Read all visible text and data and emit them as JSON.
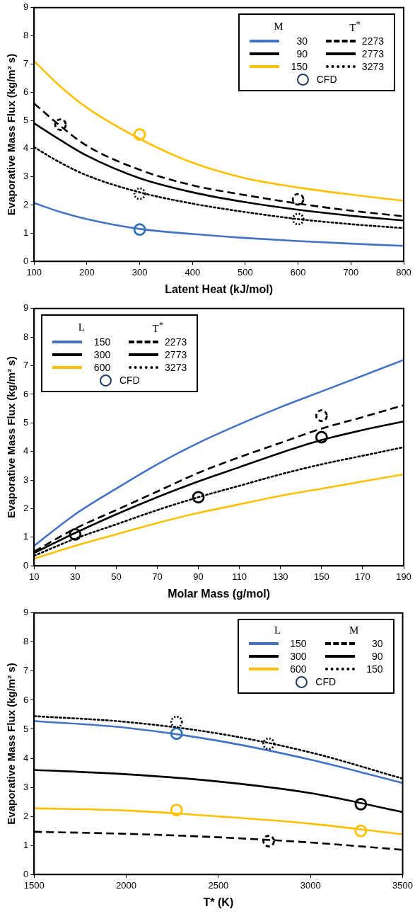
{
  "chart_data": [
    {
      "type": "line",
      "xlabel": "Latent Heat (kJ/mol)",
      "ylabel": "Evaporative Mass Flux (kg/m² s)",
      "xlim": [
        100,
        800
      ],
      "xticks": [
        100,
        200,
        300,
        400,
        500,
        600,
        700,
        800
      ],
      "ylim": [
        0,
        9
      ],
      "yticks": [
        0,
        1,
        2,
        3,
        4,
        5,
        6,
        7,
        8,
        9
      ],
      "grid": false,
      "legend": "top right",
      "annotations": [
        "M",
        "T$^{*}$"
      ],
      "x": [
        100,
        150,
        200,
        300,
        400,
        500,
        600,
        700,
        800
      ],
      "series": [
        {
          "color": "#ffc000",
          "line_style": "solid",
          "values": [
            7.1,
            6.2,
            5.45,
            4.35,
            3.5,
            2.95,
            2.62,
            2.37,
            2.15
          ]
        },
        {
          "color": "#000000",
          "line_style": "dashed",
          "values": [
            5.6,
            4.8,
            4.1,
            3.25,
            2.7,
            2.35,
            2.05,
            1.8,
            1.6
          ]
        },
        {
          "color": "#000000",
          "line_style": "solid",
          "values": [
            4.9,
            4.3,
            3.75,
            2.95,
            2.45,
            2.1,
            1.83,
            1.62,
            1.45
          ]
        },
        {
          "color": "#000000",
          "line_style": "dotted",
          "values": [
            4.05,
            3.5,
            3.05,
            2.45,
            2.05,
            1.75,
            1.5,
            1.32,
            1.18
          ]
        },
        {
          "color": "#4472c4",
          "line_style": "solid",
          "values": [
            2.07,
            1.75,
            1.5,
            1.15,
            0.97,
            0.83,
            0.72,
            0.63,
            0.55
          ]
        },
        {
          "type": "scatter",
          "marker": "circle",
          "color": "#ffc000",
          "line_style": "solid",
          "x": [
            300
          ],
          "values": [
            4.5
          ]
        },
        {
          "type": "scatter",
          "marker": "circle",
          "color": "#2e75b6",
          "line_style": "solid",
          "x": [
            300
          ],
          "values": [
            1.13
          ]
        },
        {
          "type": "scatter",
          "marker": "circle",
          "color": "#000000",
          "line_style": "dashed",
          "x": [
            150,
            600
          ],
          "values": [
            4.85,
            2.2
          ]
        },
        {
          "type": "scatter",
          "marker": "circle",
          "color": "#000000",
          "line_style": "dotted",
          "x": [
            300,
            600
          ],
          "values": [
            2.4,
            1.5
          ]
        },
        {
          "name": "30",
          "color": "#4472c4",
          "line_style": "solid",
          "values": [
            null,
            null,
            null,
            null,
            null,
            null,
            null,
            null,
            null
          ]
        },
        {
          "name": "2273",
          "color": "#000000",
          "line_style": "dashed",
          "values": [
            null,
            null,
            null,
            null,
            null,
            null,
            null,
            null,
            null
          ]
        },
        {
          "name": "90",
          "color": "#000000",
          "line_style": "solid",
          "values": [
            null,
            null,
            null,
            null,
            null,
            null,
            null,
            null,
            null
          ]
        },
        {
          "name": "2773",
          "color": "#000000",
          "line_style": "solid",
          "values": [
            null,
            null,
            null,
            null,
            null,
            null,
            null,
            null,
            null
          ]
        },
        {
          "name": "150",
          "color": "#ffc000",
          "line_style": "solid",
          "values": [
            null,
            null,
            null,
            null,
            null,
            null,
            null,
            null,
            null
          ]
        },
        {
          "name": "3273",
          "color": "#000000",
          "line_style": "dotted",
          "values": [
            null,
            null,
            null,
            null,
            null,
            null,
            null,
            null,
            null
          ]
        },
        {
          "type": "scatter",
          "marker": "circle",
          "name": "CFD",
          "color": "#1f3864",
          "values": [
            null,
            null,
            null,
            null,
            null,
            null,
            null,
            null,
            null
          ]
        }
      ]
    },
    {
      "type": "line",
      "xlabel": "Molar Mass (g/mol)",
      "ylabel": "Evaporative Mass Flux (kg/m² s)",
      "xlim": [
        10,
        190
      ],
      "xticks": [
        10,
        30,
        50,
        70,
        90,
        110,
        130,
        150,
        170,
        190
      ],
      "ylim": [
        0,
        9
      ],
      "yticks": [
        0,
        1,
        2,
        3,
        4,
        5,
        6,
        7,
        8,
        9
      ],
      "grid": false,
      "legend": "top left",
      "annotations": [
        "L",
        "T$^{*}$"
      ],
      "x": [
        10,
        30,
        50,
        70,
        90,
        110,
        130,
        150,
        170,
        190
      ],
      "series": [
        {
          "color": "#4472c4",
          "line_style": "solid",
          "values": [
            0.7,
            1.8,
            2.7,
            3.55,
            4.3,
            4.95,
            5.55,
            6.1,
            6.65,
            7.2
          ]
        },
        {
          "color": "#000000",
          "line_style": "dashed",
          "values": [
            0.5,
            1.3,
            1.95,
            2.6,
            3.25,
            3.8,
            4.3,
            4.8,
            5.2,
            5.62
          ]
        },
        {
          "color": "#000000",
          "line_style": "solid",
          "values": [
            0.45,
            1.15,
            1.8,
            2.4,
            2.95,
            3.45,
            3.95,
            4.4,
            4.75,
            5.05
          ]
        },
        {
          "color": "#000000",
          "line_style": "dotted",
          "values": [
            0.35,
            0.95,
            1.45,
            1.95,
            2.4,
            2.8,
            3.2,
            3.55,
            3.85,
            4.15
          ]
        },
        {
          "color": "#ffc000",
          "line_style": "solid",
          "values": [
            0.25,
            0.7,
            1.1,
            1.5,
            1.85,
            2.15,
            2.45,
            2.7,
            2.95,
            3.2
          ]
        },
        {
          "type": "scatter",
          "marker": "circle",
          "color": "#000000",
          "line_style": "solid",
          "x": [
            30,
            90,
            150
          ],
          "values": [
            1.1,
            2.4,
            4.5
          ]
        },
        {
          "type": "scatter",
          "marker": "circle",
          "color": "#000000",
          "line_style": "dashed",
          "x": [
            150
          ],
          "values": [
            5.25
          ]
        },
        {
          "name": "150",
          "color": "#4472c4",
          "line_style": "solid",
          "values": [
            null,
            null,
            null,
            null,
            null,
            null,
            null,
            null,
            null,
            null
          ]
        },
        {
          "name": "2273",
          "color": "#000000",
          "line_style": "dashed",
          "values": [
            null,
            null,
            null,
            null,
            null,
            null,
            null,
            null,
            null,
            null
          ]
        },
        {
          "name": "300",
          "color": "#000000",
          "line_style": "solid",
          "values": [
            null,
            null,
            null,
            null,
            null,
            null,
            null,
            null,
            null,
            null
          ]
        },
        {
          "name": "2773",
          "color": "#000000",
          "line_style": "solid",
          "values": [
            null,
            null,
            null,
            null,
            null,
            null,
            null,
            null,
            null,
            null
          ]
        },
        {
          "name": "600",
          "color": "#ffc000",
          "line_style": "solid",
          "values": [
            null,
            null,
            null,
            null,
            null,
            null,
            null,
            null,
            null,
            null
          ]
        },
        {
          "name": "3273",
          "color": "#000000",
          "line_style": "dotted",
          "values": [
            null,
            null,
            null,
            null,
            null,
            null,
            null,
            null,
            null,
            null
          ]
        },
        {
          "type": "scatter",
          "marker": "circle",
          "name": "CFD",
          "color": "#1f3864",
          "values": [
            null,
            null,
            null,
            null,
            null,
            null,
            null,
            null,
            null,
            null
          ]
        }
      ]
    },
    {
      "type": "line",
      "xlabel": "T* (K)",
      "ylabel": "Evaporative Mass Flux (kg/m² s)",
      "xlim": [
        1500,
        3500
      ],
      "xticks": [
        1500,
        2000,
        2500,
        3000,
        3500
      ],
      "ylim": [
        0,
        9
      ],
      "yticks": [
        0,
        1,
        2,
        3,
        4,
        5,
        6,
        7,
        8,
        9
      ],
      "grid": false,
      "legend": "top right",
      "annotations": [
        "L",
        "M"
      ],
      "x": [
        1500,
        2000,
        2500,
        3000,
        3500
      ],
      "series": [
        {
          "color": "#000000",
          "line_style": "dotted",
          "values": [
            5.45,
            5.25,
            4.85,
            4.2,
            3.3
          ]
        },
        {
          "color": "#4472c4",
          "line_style": "solid",
          "values": [
            5.28,
            5.05,
            4.6,
            3.95,
            3.15
          ]
        },
        {
          "color": "#000000",
          "line_style": "solid",
          "values": [
            3.6,
            3.45,
            3.2,
            2.8,
            2.15
          ]
        },
        {
          "color": "#ffc000",
          "line_style": "solid",
          "values": [
            2.28,
            2.2,
            2.0,
            1.75,
            1.38
          ]
        },
        {
          "color": "#000000",
          "line_style": "dashed",
          "values": [
            1.47,
            1.4,
            1.28,
            1.1,
            0.85
          ]
        },
        {
          "type": "scatter",
          "marker": "circle",
          "color": "#2e75b6",
          "line_style": "solid",
          "x": [
            2273
          ],
          "values": [
            4.85
          ]
        },
        {
          "type": "scatter",
          "marker": "circle",
          "color": "#ffc000",
          "line_style": "solid",
          "x": [
            2273,
            3273
          ],
          "values": [
            2.22,
            1.5
          ]
        },
        {
          "type": "scatter",
          "marker": "circle",
          "color": "#000000",
          "line_style": "solid",
          "x": [
            3273
          ],
          "values": [
            2.42
          ]
        },
        {
          "type": "scatter",
          "marker": "circle",
          "color": "#000000",
          "line_style": "dotted",
          "x": [
            2273,
            2773
          ],
          "values": [
            5.25,
            4.5
          ]
        },
        {
          "type": "scatter",
          "marker": "circle",
          "color": "#000000",
          "line_style": "dashed",
          "x": [
            2773
          ],
          "values": [
            1.15
          ]
        },
        {
          "name": "150",
          "color": "#4472c4",
          "line_style": "solid",
          "values": [
            null,
            null,
            null,
            null,
            null
          ]
        },
        {
          "name": "30",
          "color": "#000000",
          "line_style": "dashed",
          "values": [
            null,
            null,
            null,
            null,
            null
          ]
        },
        {
          "name": "300",
          "color": "#000000",
          "line_style": "solid",
          "values": [
            null,
            null,
            null,
            null,
            null
          ]
        },
        {
          "name": "90",
          "color": "#000000",
          "line_style": "solid",
          "values": [
            null,
            null,
            null,
            null,
            null
          ]
        },
        {
          "name": "600",
          "color": "#ffc000",
          "line_style": "solid",
          "values": [
            null,
            null,
            null,
            null,
            null
          ]
        },
        {
          "name": "150",
          "color": "#000000",
          "line_style": "dotted",
          "values": [
            null,
            null,
            null,
            null,
            null
          ]
        },
        {
          "type": "scatter",
          "marker": "circle",
          "name": "CFD",
          "color": "#1f3864",
          "values": [
            null,
            null,
            null,
            null,
            null
          ]
        }
      ]
    }
  ]
}
